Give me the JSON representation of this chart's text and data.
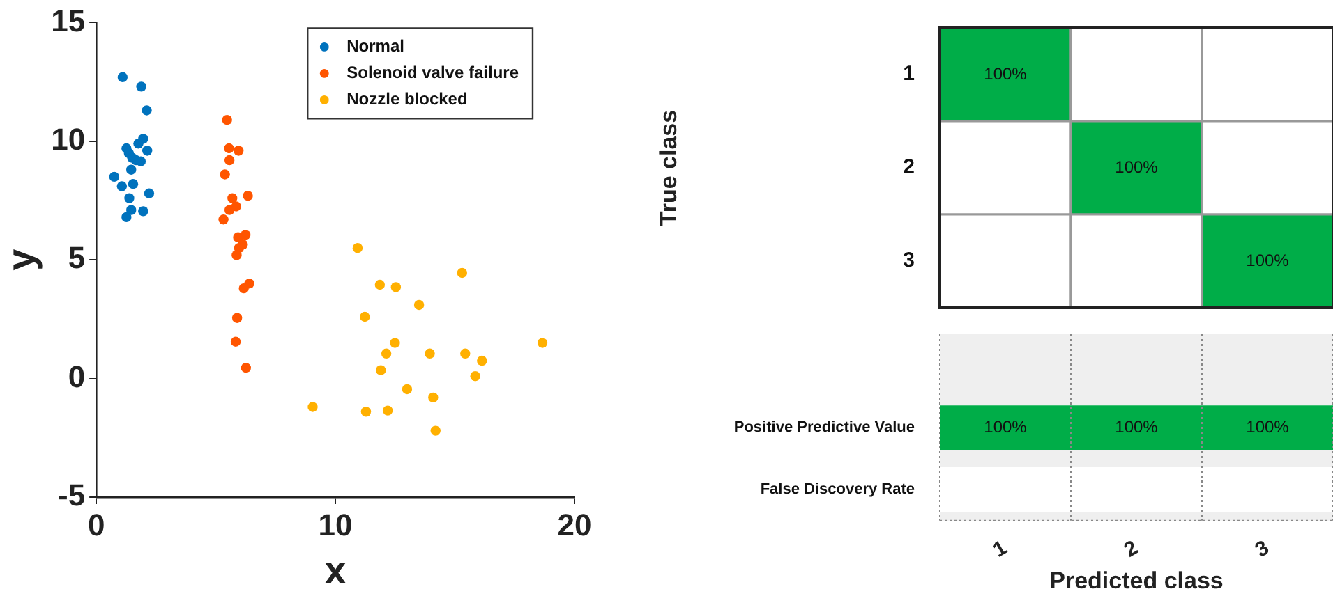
{
  "chart_data": [
    {
      "type": "scatter",
      "xlabel": "x",
      "ylabel": "y",
      "xlim": [
        0,
        20
      ],
      "ylim": [
        -5,
        15
      ],
      "xticks": [
        0,
        10,
        20
      ],
      "yticks": [
        -5,
        0,
        5,
        10,
        15
      ],
      "grid": false,
      "legend": "top right",
      "marker": "circle",
      "series": [
        {
          "name": "Normal",
          "color": "#0072bd",
          "x": [
            1.1,
            1.88,
            2.11,
            1.96,
            1.76,
            1.26,
            2.13,
            1.36,
            1.5,
            1.66,
            1.86,
            1.46,
            0.75,
            1.07,
            1.54,
            2.21,
            1.38,
            1.46,
            1.96,
            1.26
          ],
          "values": [
            12.7,
            12.3,
            11.3,
            10.1,
            9.9,
            9.7,
            9.6,
            9.5,
            9.3,
            9.2,
            9.15,
            8.8,
            8.5,
            8.1,
            8.2,
            7.8,
            7.6,
            7.1,
            7.05,
            6.8
          ]
        },
        {
          "name": "Solenoid valve failure",
          "color": "#ff5500",
          "x": [
            5.47,
            5.55,
            5.95,
            5.57,
            5.38,
            6.34,
            5.69,
            5.85,
            5.57,
            5.32,
            6.24,
            5.93,
            6.13,
            5.97,
            5.87,
            6.4,
            6.17,
            5.89,
            5.83,
            6.26
          ],
          "values": [
            10.9,
            9.7,
            9.6,
            9.2,
            8.6,
            7.7,
            7.6,
            7.25,
            7.1,
            6.7,
            6.05,
            5.95,
            5.65,
            5.5,
            5.2,
            4.0,
            3.8,
            2.55,
            1.55,
            0.45
          ]
        },
        {
          "name": "Nozzle blocked",
          "color": "#ffb000",
          "x": [
            10.93,
            15.3,
            11.86,
            12.53,
            13.5,
            11.23,
            12.49,
            18.66,
            12.13,
            13.95,
            15.43,
            16.13,
            11.9,
            15.85,
            13.0,
            14.09,
            9.05,
            11.28,
            12.19,
            14.19
          ],
          "values": [
            5.5,
            4.45,
            3.95,
            3.85,
            3.1,
            2.6,
            1.5,
            1.5,
            1.05,
            1.05,
            1.05,
            0.75,
            0.35,
            0.1,
            -0.45,
            -0.8,
            -1.2,
            -1.4,
            -1.35,
            -2.2
          ]
        }
      ]
    },
    {
      "type": "heatmap",
      "ylabel": "True class",
      "categories": [
        "1",
        "2",
        "3"
      ],
      "y_categories": [
        "1",
        "2",
        "3"
      ],
      "tick_labels": "y",
      "cells": [
        [
          100,
          null,
          null
        ],
        [
          null,
          100,
          null
        ],
        [
          null,
          null,
          100
        ]
      ],
      "cell_labels": [
        [
          "100%",
          null,
          null
        ],
        [
          null,
          "100%",
          null
        ],
        [
          null,
          null,
          "100%"
        ]
      ]
    },
    {
      "type": "heatmap",
      "xlabel": "Predicted class",
      "categories": [
        "1",
        "2",
        "3"
      ],
      "y_categories": [
        "Positive Predictive Value",
        "False Discovery Rate"
      ],
      "cells": [
        [
          100,
          100,
          100
        ],
        [
          null,
          null,
          null
        ]
      ],
      "cell_labels": [
        [
          "100%",
          "100%",
          "100%"
        ],
        [
          null,
          null,
          null
        ]
      ]
    }
  ]
}
